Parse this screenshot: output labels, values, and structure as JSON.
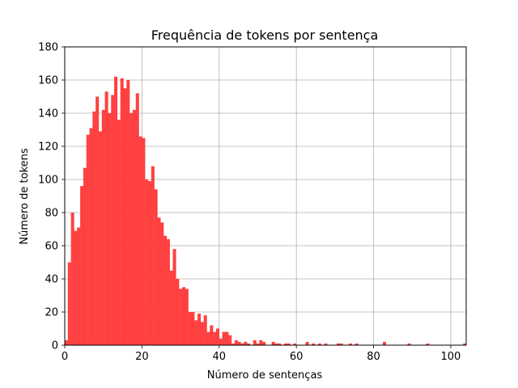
{
  "chart_data": {
    "type": "bar",
    "title": "Frequência de tokens por sentença",
    "xlabel": "Número de sentenças",
    "ylabel": "Número de tokens",
    "xlim": [
      0,
      104
    ],
    "ylim": [
      0,
      180
    ],
    "xticks": [
      "0",
      "20",
      "40",
      "60",
      "80",
      "100"
    ],
    "yticks": [
      "0",
      "20",
      "40",
      "60",
      "80",
      "100",
      "120",
      "140",
      "160",
      "180"
    ],
    "grid": true,
    "bar_color": "#ff4040",
    "bin_width": 0.8,
    "bin_starts": [
      0,
      0.8,
      1.6,
      2.4,
      3.2,
      4.0,
      4.8,
      5.6,
      6.4,
      7.2,
      8.0,
      8.8,
      9.6,
      10.4,
      11.2,
      12.0,
      12.8,
      13.6,
      14.4,
      15.2,
      16.0,
      16.8,
      17.6,
      18.4,
      19.2,
      20.0,
      20.8,
      21.6,
      22.4,
      23.2,
      24.0,
      24.8,
      25.6,
      26.4,
      27.2,
      28.0,
      28.8,
      29.6,
      30.4,
      31.2,
      32.0,
      32.8,
      33.6,
      34.4,
      35.2,
      36.0,
      36.8,
      37.6,
      38.4,
      39.2,
      40.0,
      40.8,
      41.6,
      42.4,
      43.2,
      44.0,
      44.8,
      45.6,
      46.4,
      47.2,
      48.0,
      48.8,
      49.6,
      50.4,
      51.2,
      52.0,
      52.8,
      53.6,
      54.4,
      55.2,
      56.0,
      56.8,
      57.6,
      58.4,
      59.2,
      60.0,
      60.8,
      61.6,
      62.4,
      63.2,
      64.0,
      64.8,
      65.6,
      66.4,
      67.2,
      68.0,
      68.8,
      69.6,
      70.4,
      71.2,
      72.0,
      72.8,
      73.6,
      74.4,
      75.2,
      76.0,
      76.8,
      77.6,
      78.4,
      79.2,
      80.0,
      80.8,
      81.6,
      82.4,
      83.2,
      84.0,
      84.8,
      85.6,
      86.4,
      87.2,
      88.0,
      88.8,
      89.6,
      90.4,
      91.2,
      92.0,
      92.8,
      93.6,
      94.4,
      95.2,
      96.0,
      96.8,
      97.6,
      98.4,
      99.2,
      100.0,
      100.8,
      101.6,
      102.4,
      103.2
    ],
    "values": [
      3,
      50,
      80,
      69,
      71,
      96,
      107,
      127,
      131,
      141,
      150,
      129,
      142,
      153,
      140,
      151,
      162,
      136,
      161,
      155,
      160,
      140,
      142,
      152,
      126,
      125,
      100,
      99,
      108,
      94,
      77,
      74,
      66,
      64,
      45,
      58,
      40,
      34,
      35,
      34,
      20,
      20,
      15,
      19,
      14,
      18,
      8,
      12,
      8,
      10,
      4,
      8,
      8,
      6,
      1,
      3,
      2,
      1,
      2,
      1,
      0,
      3,
      1,
      3,
      2,
      0,
      0,
      2,
      1,
      1,
      0,
      1,
      1,
      0,
      1,
      0,
      0,
      0,
      2,
      0,
      1,
      0,
      1,
      0,
      1,
      0,
      0,
      0,
      1,
      1,
      0,
      0,
      1,
      0,
      1,
      0,
      0,
      0,
      0,
      0,
      0,
      0,
      0,
      2,
      0,
      0,
      0,
      0,
      0,
      0,
      0,
      1,
      0,
      0,
      0,
      0,
      0,
      1,
      0,
      0,
      0,
      0,
      0,
      0,
      0,
      0,
      0,
      0,
      0,
      1
    ]
  }
}
